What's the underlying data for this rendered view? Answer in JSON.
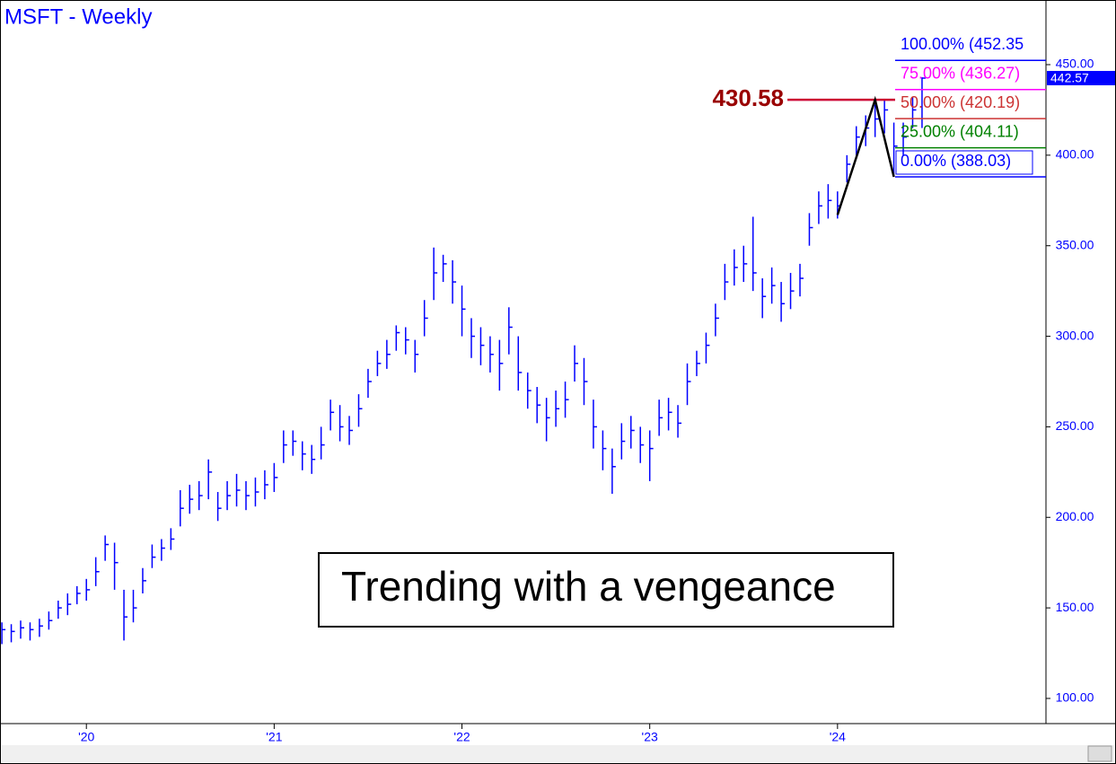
{
  "chart_data": {
    "type": "ohlc",
    "title": "MSFT - Weekly",
    "annotation": "Trending with a vengeance",
    "color": "#0000ff",
    "x": [
      2019.55,
      2019.6,
      2019.65,
      2019.7,
      2019.75,
      2019.8,
      2019.85,
      2019.9,
      2019.95,
      2020.0,
      2020.05,
      2020.1,
      2020.15,
      2020.2,
      2020.25,
      2020.3,
      2020.35,
      2020.4,
      2020.45,
      2020.5,
      2020.55,
      2020.6,
      2020.65,
      2020.7,
      2020.75,
      2020.8,
      2020.85,
      2020.9,
      2020.95,
      2021.0,
      2021.05,
      2021.1,
      2021.15,
      2021.2,
      2021.25,
      2021.3,
      2021.35,
      2021.4,
      2021.45,
      2021.5,
      2021.55,
      2021.6,
      2021.65,
      2021.7,
      2021.75,
      2021.8,
      2021.85,
      2021.9,
      2021.95,
      2022.0,
      2022.05,
      2022.1,
      2022.15,
      2022.2,
      2022.25,
      2022.3,
      2022.35,
      2022.4,
      2022.45,
      2022.5,
      2022.55,
      2022.6,
      2022.65,
      2022.7,
      2022.75,
      2022.8,
      2022.85,
      2022.9,
      2022.95,
      2023.0,
      2023.05,
      2023.1,
      2023.15,
      2023.2,
      2023.25,
      2023.3,
      2023.35,
      2023.4,
      2023.45,
      2023.5,
      2023.55,
      2023.6,
      2023.65,
      2023.7,
      2023.75,
      2023.8,
      2023.85,
      2023.9,
      2023.95,
      2024.0,
      2024.05,
      2024.1,
      2024.15,
      2024.2,
      2024.25,
      2024.3,
      2024.35,
      2024.4,
      2024.45
    ],
    "high": [
      142,
      141,
      143,
      142,
      144,
      148,
      154,
      158,
      162,
      166,
      178,
      190,
      186,
      160,
      160,
      172,
      185,
      188,
      194,
      215,
      218,
      220,
      232,
      214,
      220,
      224,
      220,
      222,
      226,
      230,
      248,
      248,
      242,
      240,
      250,
      265,
      262,
      256,
      268,
      282,
      292,
      298,
      306,
      305,
      298,
      320,
      349,
      345,
      342,
      328,
      310,
      305,
      300,
      298,
      316,
      300,
      280,
      272,
      266,
      270,
      275,
      295,
      288,
      265,
      248,
      238,
      252,
      256,
      250,
      248,
      265,
      266,
      262,
      285,
      292,
      302,
      318,
      340,
      348,
      350,
      366,
      332,
      338,
      330,
      335,
      340,
      368,
      380,
      384,
      380,
      400,
      416,
      422,
      428,
      430.58,
      418,
      418,
      432,
      443
    ],
    "low": [
      130,
      131,
      133,
      132,
      134,
      138,
      144,
      146,
      152,
      154,
      162,
      176,
      160,
      132,
      142,
      158,
      172,
      176,
      182,
      195,
      202,
      204,
      210,
      198,
      204,
      206,
      204,
      206,
      210,
      214,
      230,
      234,
      226,
      224,
      232,
      248,
      242,
      240,
      250,
      266,
      278,
      282,
      292,
      290,
      280,
      300,
      320,
      330,
      318,
      300,
      288,
      284,
      280,
      270,
      290,
      270,
      260,
      252,
      242,
      250,
      255,
      275,
      262,
      238,
      226,
      213,
      232,
      238,
      230,
      220,
      245,
      248,
      244,
      262,
      278,
      285,
      300,
      320,
      328,
      330,
      325,
      310,
      318,
      308,
      315,
      322,
      350,
      362,
      365,
      365,
      385,
      400,
      405,
      410,
      412,
      388,
      400,
      415,
      415
    ],
    "close": [
      138,
      137,
      139,
      138,
      140,
      143,
      150,
      152,
      158,
      160,
      170,
      185,
      175,
      145,
      150,
      165,
      178,
      183,
      188,
      205,
      210,
      212,
      225,
      205,
      212,
      215,
      212,
      214,
      218,
      222,
      240,
      242,
      235,
      232,
      240,
      258,
      250,
      248,
      260,
      275,
      285,
      290,
      302,
      298,
      290,
      310,
      335,
      340,
      330,
      315,
      300,
      295,
      290,
      285,
      305,
      280,
      270,
      262,
      255,
      260,
      265,
      285,
      275,
      250,
      238,
      228,
      242,
      248,
      240,
      238,
      255,
      258,
      252,
      275,
      285,
      295,
      310,
      330,
      338,
      340,
      335,
      322,
      328,
      318,
      325,
      332,
      360,
      372,
      375,
      372,
      395,
      410,
      415,
      420,
      425,
      405,
      410,
      425,
      442.57
    ],
    "last_price": 442.57,
    "swing_high": 430.58,
    "pattern": {
      "x": [
        2024.0,
        2024.2,
        2024.3
      ],
      "values": [
        367,
        430.58,
        388.03
      ]
    },
    "fib_levels": [
      {
        "value": 452.35,
        "label": "100.00% (452.35",
        "color": "#0000ff"
      },
      {
        "value": 436.27,
        "label": "75.00% (436.27)",
        "color": "#ff00ff"
      },
      {
        "value": 420.19,
        "label": "50.00% (420.19)",
        "color": "#cc3333"
      },
      {
        "value": 404.11,
        "label": "25.00% (404.11)",
        "color": "#008000"
      },
      {
        "value": 388.03,
        "label": "0.00% (388.03)",
        "color": "#0000ff"
      }
    ],
    "xlim": [
      2019.54,
      2025.11
    ],
    "xticks": [
      {
        "value": 2020,
        "label": "'20"
      },
      {
        "value": 2021,
        "label": "'21"
      },
      {
        "value": 2022,
        "label": "'22"
      },
      {
        "value": 2023,
        "label": "'23"
      },
      {
        "value": 2024,
        "label": "'24"
      }
    ],
    "ylim": [
      86.1,
      485.7
    ],
    "yticks": [
      {
        "value": 100,
        "label": "100.00"
      },
      {
        "value": 150,
        "label": "150.00"
      },
      {
        "value": 200,
        "label": "200.00"
      },
      {
        "value": 250,
        "label": "250.00"
      },
      {
        "value": 300,
        "label": "300.00"
      },
      {
        "value": 350,
        "label": "350.00"
      },
      {
        "value": 400,
        "label": "400.00"
      },
      {
        "value": 450,
        "label": "450.00"
      }
    ]
  }
}
